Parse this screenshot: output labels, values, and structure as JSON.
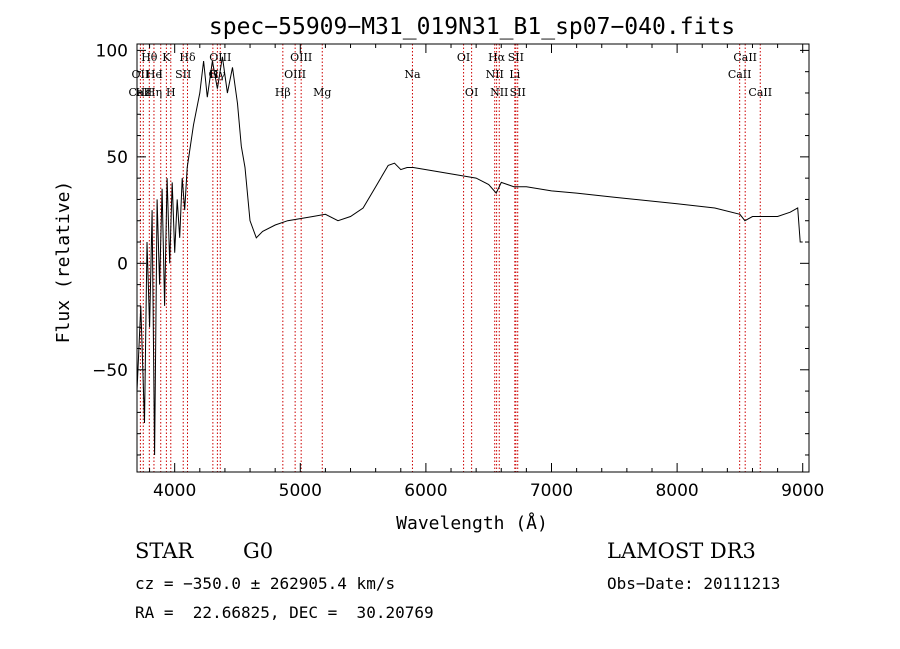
{
  "chart_data": {
    "type": "line",
    "title": "spec−55909−M31_019N31_B1_sp07−040.fits",
    "xlabel": "Wavelength (Å)",
    "ylabel": "Flux (relative)",
    "xlim": [
      3700,
      9050
    ],
    "ylim": [
      -98,
      103
    ],
    "xticks": [
      4000,
      5000,
      6000,
      7000,
      8000,
      9000
    ],
    "xtick_labels": [
      "4000",
      "5000",
      "6000",
      "7000",
      "8000",
      "9000"
    ],
    "yticks": [
      0,
      50,
      100,
      -50
    ],
    "ytick_labels": [
      "0",
      "50",
      "100",
      "−50"
    ],
    "grid": false,
    "series": [
      {
        "name": "flux",
        "x": [
          3700,
          3730,
          3760,
          3780,
          3800,
          3820,
          3840,
          3860,
          3880,
          3900,
          3920,
          3940,
          3960,
          3980,
          4000,
          4020,
          4040,
          4060,
          4080,
          4100,
          4150,
          4200,
          4230,
          4260,
          4300,
          4340,
          4380,
          4420,
          4460,
          4500,
          4530,
          4560,
          4600,
          4650,
          4700,
          4800,
          4900,
          5000,
          5100,
          5200,
          5300,
          5400,
          5500,
          5600,
          5700,
          5750,
          5800,
          5850,
          5900,
          6000,
          6100,
          6200,
          6300,
          6400,
          6500,
          6560,
          6600,
          6700,
          6800,
          7000,
          7200,
          7500,
          8000,
          8300,
          8500,
          8540,
          8600,
          8700,
          8800,
          8900,
          8960,
          8980,
          9000
        ],
        "y": [
          -60,
          -20,
          -75,
          10,
          -30,
          25,
          -90,
          30,
          -10,
          35,
          -20,
          40,
          0,
          38,
          5,
          30,
          12,
          40,
          25,
          45,
          65,
          80,
          95,
          78,
          95,
          82,
          97,
          80,
          92,
          75,
          55,
          45,
          20,
          12,
          15,
          18,
          20,
          21,
          22,
          23,
          20,
          22,
          26,
          36,
          46,
          47,
          44,
          45,
          45,
          44,
          43,
          42,
          41,
          40,
          37,
          33,
          38,
          36,
          36,
          34,
          33,
          31,
          28,
          26,
          23,
          20,
          22,
          22,
          22,
          24,
          26,
          10,
          10
        ]
      }
    ],
    "lines": [
      {
        "label": "Hθ",
        "x": 3798,
        "row": 1
      },
      {
        "label": "OII",
        "x": 3727,
        "row": 2
      },
      {
        "label": "CaII",
        "x": 3727,
        "row": 3
      },
      {
        "label": "Hε",
        "x": 3750,
        "row": 3
      },
      {
        "label": "He",
        "x": 3835,
        "row": 2
      },
      {
        "label": "Hη",
        "x": 3835,
        "row": 3
      },
      {
        "label": "K",
        "x": 3934,
        "row": 1
      },
      {
        "label": "I",
        "x": 3889,
        "row": 2
      },
      {
        "label": "H",
        "x": 3969,
        "row": 3
      },
      {
        "label": "Hδ",
        "x": 4102,
        "row": 1
      },
      {
        "label": "SII",
        "x": 4068,
        "row": 2
      },
      {
        "label": "OIII",
        "x": 4363,
        "row": 1
      },
      {
        "label": "G",
        "x": 4304,
        "row": 2
      },
      {
        "label": "Hγ",
        "x": 4340,
        "row": 2
      },
      {
        "label": "OIII",
        "x": 5007,
        "row": 1
      },
      {
        "label": "OIII",
        "x": 4959,
        "row": 2
      },
      {
        "label": "Hβ",
        "x": 4861,
        "row": 3
      },
      {
        "label": "Mg",
        "x": 5175,
        "row": 3
      },
      {
        "label": "Na",
        "x": 5893,
        "row": 2
      },
      {
        "label": "OI",
        "x": 6300,
        "row": 1
      },
      {
        "label": "OI",
        "x": 6364,
        "row": 3
      },
      {
        "label": "Hα",
        "x": 6563,
        "row": 1
      },
      {
        "label": "SII",
        "x": 6716,
        "row": 1
      },
      {
        "label": "NII",
        "x": 6548,
        "row": 2
      },
      {
        "label": "Li",
        "x": 6708,
        "row": 2
      },
      {
        "label": "NII",
        "x": 6584,
        "row": 3
      },
      {
        "label": "SII",
        "x": 6731,
        "row": 3
      },
      {
        "label": "CaII",
        "x": 8542,
        "row": 1
      },
      {
        "label": "CaII",
        "x": 8498,
        "row": 2
      },
      {
        "label": "CaII",
        "x": 8662,
        "row": 3
      }
    ]
  },
  "info": {
    "class": "STAR",
    "subclass": "G0",
    "survey": "LAMOST DR3",
    "cz": "cz = −350.0 ± 262905.4 km/s",
    "obs_date": "Obs−Date: 20111213",
    "radec": "RA =  22.66825, DEC =  30.20769"
  },
  "colors": {
    "line_marker": "#cc0000",
    "spectrum": "#000000"
  }
}
